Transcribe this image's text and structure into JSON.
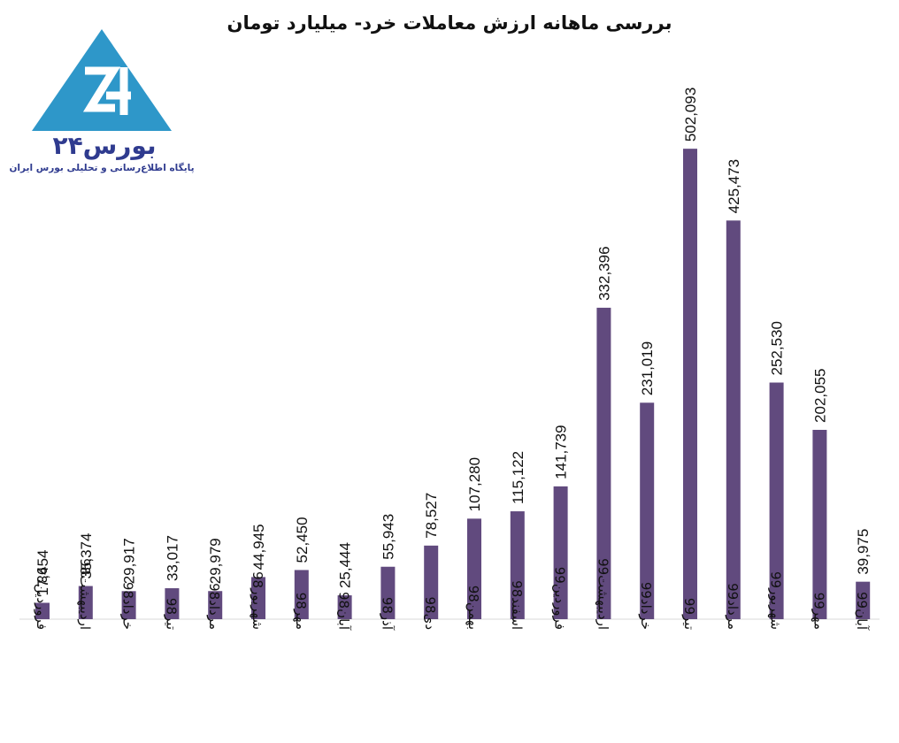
{
  "logo": {
    "name": "بورس۲۴",
    "tagline": "پایگاه اطلاع‌رسانی و تحلیلی بورس ایران",
    "color_triangle": "#2e97c9",
    "color_text": "#2f3b8f"
  },
  "chart_data": {
    "type": "bar",
    "title": "بررسی ماهانه ارزش معاملات خرد- میلیارد تومان",
    "categories": [
      "فروردین98",
      "اردیبهشت98",
      "خرداد98",
      "تیر98",
      "مرداد98",
      "شهریور98",
      "مهر98",
      "آبان98",
      "آذر98",
      "دی98",
      "بهمن98",
      "اسفند98",
      "فروردین99",
      "اردیبهشت99",
      "خرداد99",
      "تیر99",
      "مرداد99",
      "شهریور99",
      "مهر99",
      "آبان99"
    ],
    "values": [
      17454,
      35374,
      29917,
      33017,
      29979,
      44945,
      52450,
      25444,
      55943,
      78527,
      107280,
      115122,
      141739,
      332396,
      231019,
      502093,
      425473,
      252530,
      202055,
      39975
    ],
    "value_labels": [
      "17,454",
      "35,374",
      "29,917",
      "33,017",
      "29,979",
      "44,945",
      "52,450",
      "25,444",
      "55,943",
      "78,527",
      "107,280",
      "115,122",
      "141,739",
      "332,396",
      "231,019",
      "502,093",
      "425,473",
      "252,530",
      "202,055",
      "39,975"
    ],
    "bar_color": "#614a7e",
    "ylim": [
      0,
      540000
    ],
    "grid": false,
    "legend": "none"
  }
}
